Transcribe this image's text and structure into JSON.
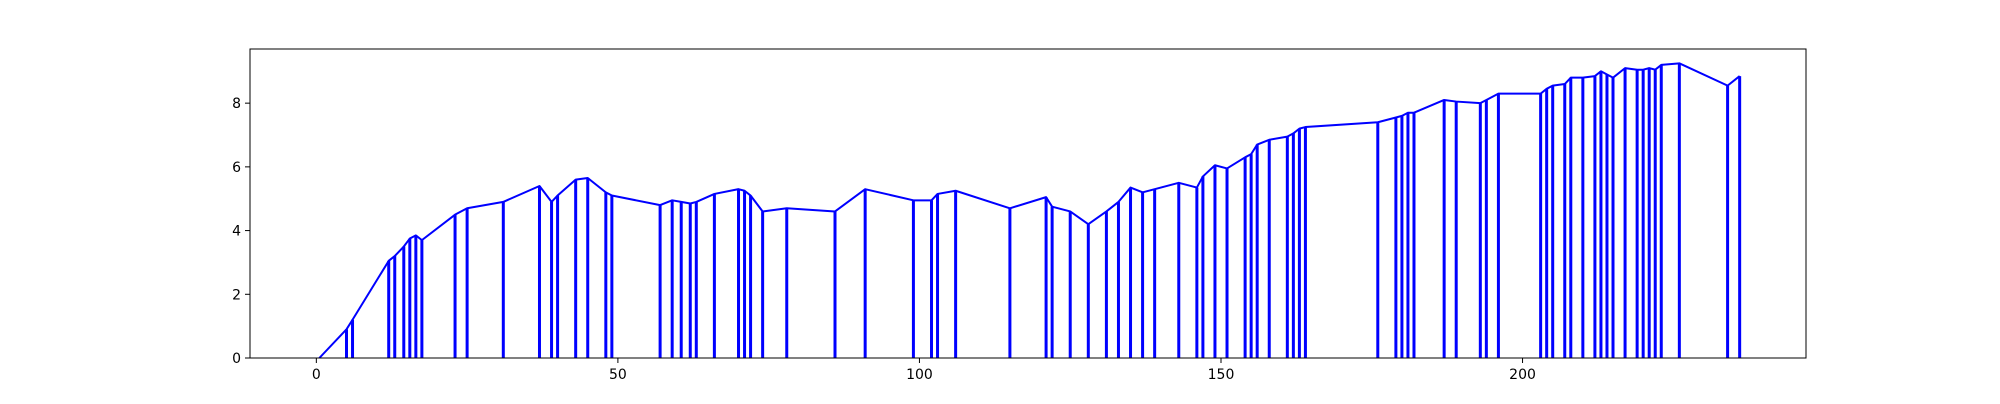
{
  "chart_data": {
    "type": "line",
    "title": "",
    "xlabel": "",
    "ylabel": "",
    "xlim": [
      -11,
      247
    ],
    "ylim": [
      0,
      9.7
    ],
    "grid": false,
    "legend": "none",
    "x_ticks": [
      0,
      50,
      100,
      150,
      200
    ],
    "y_ticks": [
      0,
      2,
      4,
      6,
      8
    ],
    "x_tick_labels": [
      "0",
      "50",
      "100",
      "150",
      "200"
    ],
    "y_tick_labels": [
      "0",
      "2",
      "4",
      "6",
      "8"
    ],
    "series": [
      {
        "color": "#0000ff",
        "points": [
          [
            0.5,
            0.0
          ],
          [
            5,
            0.9
          ],
          [
            6,
            1.2
          ],
          [
            12,
            3.05
          ],
          [
            13,
            3.2
          ],
          [
            14.5,
            3.5
          ],
          [
            15.5,
            3.75
          ],
          [
            16.5,
            3.85
          ],
          [
            17.5,
            3.7
          ],
          [
            23,
            4.5
          ],
          [
            25,
            4.7
          ],
          [
            31,
            4.9
          ],
          [
            37,
            5.4
          ],
          [
            39,
            4.9
          ],
          [
            40,
            5.1
          ],
          [
            43,
            5.6
          ],
          [
            45,
            5.65
          ],
          [
            48,
            5.2
          ],
          [
            49,
            5.1
          ],
          [
            57,
            4.8
          ],
          [
            59,
            4.95
          ],
          [
            60.5,
            4.9
          ],
          [
            62,
            4.85
          ],
          [
            63,
            4.9
          ],
          [
            66,
            5.15
          ],
          [
            70,
            5.3
          ],
          [
            71,
            5.25
          ],
          [
            72,
            5.1
          ],
          [
            74,
            4.6
          ],
          [
            78,
            4.7
          ],
          [
            86,
            4.6
          ],
          [
            91,
            5.3
          ],
          [
            99,
            4.95
          ],
          [
            102,
            4.95
          ],
          [
            103,
            5.15
          ],
          [
            106,
            5.25
          ],
          [
            115,
            4.7
          ],
          [
            121,
            5.05
          ],
          [
            122,
            4.75
          ],
          [
            125,
            4.6
          ],
          [
            128,
            4.2
          ],
          [
            131,
            4.6
          ],
          [
            133,
            4.9
          ],
          [
            135,
            5.35
          ],
          [
            137,
            5.2
          ],
          [
            139,
            5.3
          ],
          [
            143,
            5.5
          ],
          [
            146,
            5.35
          ],
          [
            147,
            5.7
          ],
          [
            149,
            6.05
          ],
          [
            151,
            5.95
          ],
          [
            154,
            6.3
          ],
          [
            155,
            6.4
          ],
          [
            156,
            6.7
          ],
          [
            158,
            6.85
          ],
          [
            161,
            6.95
          ],
          [
            162,
            7.05
          ],
          [
            163,
            7.2
          ],
          [
            164,
            7.25
          ],
          [
            176,
            7.4
          ],
          [
            179,
            7.55
          ],
          [
            180,
            7.6
          ],
          [
            181,
            7.7
          ],
          [
            182,
            7.7
          ],
          [
            187,
            8.1
          ],
          [
            189,
            8.05
          ],
          [
            193,
            8.0
          ],
          [
            194,
            8.1
          ],
          [
            196,
            8.3
          ],
          [
            203,
            8.3
          ],
          [
            204,
            8.45
          ],
          [
            205,
            8.55
          ],
          [
            207,
            8.6
          ],
          [
            208,
            8.8
          ],
          [
            210,
            8.8
          ],
          [
            212,
            8.85
          ],
          [
            213,
            9.0
          ],
          [
            214,
            8.9
          ],
          [
            215,
            8.8
          ],
          [
            217,
            9.1
          ],
          [
            219,
            9.05
          ],
          [
            220,
            9.05
          ],
          [
            221,
            9.1
          ],
          [
            222,
            9.05
          ],
          [
            223,
            9.2
          ],
          [
            226,
            9.25
          ],
          [
            234,
            8.55
          ],
          [
            236,
            8.85
          ]
        ]
      }
    ]
  }
}
